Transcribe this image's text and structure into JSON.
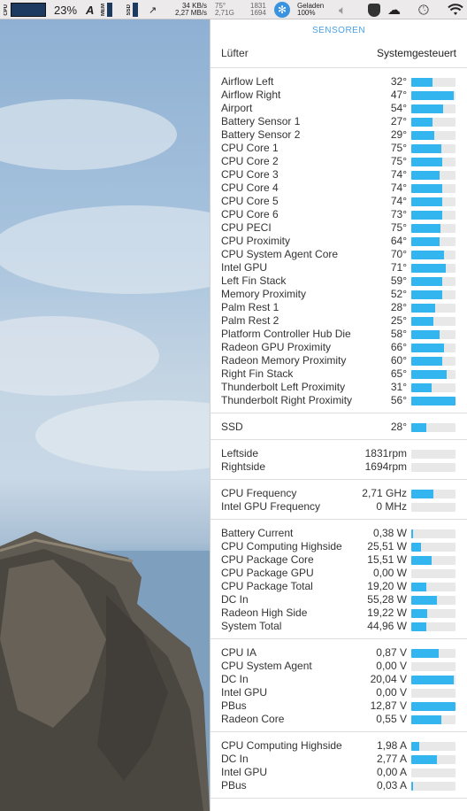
{
  "menubar": {
    "cpu_label": "CPU",
    "cpu_percent": "23%",
    "mem_label": "MEM",
    "ssd_label": "SSD",
    "net_up": "34 KB/s",
    "net_down": "2,27 MB/s",
    "stat1_top": "75°",
    "stat1_bottom": "2,71G",
    "stat2_top": "1831",
    "stat2_bottom": "1694",
    "battery_top": "Geladen",
    "battery_bottom": "100%"
  },
  "panel": {
    "title": "SENSOREN",
    "fan_label": "Lüfter",
    "fan_mode": "Systemgesteuert",
    "temperatures": [
      {
        "label": "Airflow Left",
        "value": "32°",
        "fill": 0.48
      },
      {
        "label": "Airflow Right",
        "value": "47°",
        "fill": 0.96
      },
      {
        "label": "Airport",
        "value": "54°",
        "fill": 0.72
      },
      {
        "label": "Battery Sensor 1",
        "value": "27°",
        "fill": 0.48
      },
      {
        "label": "Battery Sensor 2",
        "value": "29°",
        "fill": 0.52
      },
      {
        "label": "CPU Core 1",
        "value": "75°",
        "fill": 0.68
      },
      {
        "label": "CPU Core 2",
        "value": "75°",
        "fill": 0.7
      },
      {
        "label": "CPU Core 3",
        "value": "74°",
        "fill": 0.64
      },
      {
        "label": "CPU Core 4",
        "value": "74°",
        "fill": 0.7
      },
      {
        "label": "CPU Core 5",
        "value": "74°",
        "fill": 0.7
      },
      {
        "label": "CPU Core 6",
        "value": "73°",
        "fill": 0.7
      },
      {
        "label": "CPU PECI",
        "value": "75°",
        "fill": 0.66
      },
      {
        "label": "CPU Proximity",
        "value": "64°",
        "fill": 0.64
      },
      {
        "label": "CPU System Agent Core",
        "value": "70°",
        "fill": 0.74
      },
      {
        "label": "Intel GPU",
        "value": "71°",
        "fill": 0.78
      },
      {
        "label": "Left Fin Stack",
        "value": "59°",
        "fill": 0.7
      },
      {
        "label": "Memory Proximity",
        "value": "52°",
        "fill": 0.7
      },
      {
        "label": "Palm Rest 1",
        "value": "28°",
        "fill": 0.54
      },
      {
        "label": "Palm Rest 2",
        "value": "25°",
        "fill": 0.5
      },
      {
        "label": "Platform Controller Hub Die",
        "value": "58°",
        "fill": 0.64
      },
      {
        "label": "Radeon GPU Proximity",
        "value": "66°",
        "fill": 0.74
      },
      {
        "label": "Radeon Memory Proximity",
        "value": "60°",
        "fill": 0.7
      },
      {
        "label": "Right Fin Stack",
        "value": "65°",
        "fill": 0.8
      },
      {
        "label": "Thunderbolt Left Proximity",
        "value": "31°",
        "fill": 0.46
      },
      {
        "label": "Thunderbolt Right Proximity",
        "value": "56°",
        "fill": 1.0
      }
    ],
    "ssd": [
      {
        "label": "SSD",
        "value": "28°",
        "fill": 0.34
      }
    ],
    "fans": [
      {
        "label": "Leftside",
        "value": "1831rpm",
        "fill": 0
      },
      {
        "label": "Rightside",
        "value": "1694rpm",
        "fill": 0
      }
    ],
    "frequencies": [
      {
        "label": "CPU Frequency",
        "value": "2,71 GHz",
        "fill": 0.5
      },
      {
        "label": "Intel GPU Frequency",
        "value": "0 MHz",
        "fill": 0
      }
    ],
    "power": [
      {
        "label": "Battery Current",
        "value": "0,38 W",
        "fill": 0.03
      },
      {
        "label": "CPU Computing Highside",
        "value": "25,51 W",
        "fill": 0.22
      },
      {
        "label": "CPU Package Core",
        "value": "15,51 W",
        "fill": 0.46
      },
      {
        "label": "CPU Package GPU",
        "value": "0,00 W",
        "fill": 0
      },
      {
        "label": "CPU Package Total",
        "value": "19,20 W",
        "fill": 0.34
      },
      {
        "label": "DC In",
        "value": "55,28 W",
        "fill": 0.58
      },
      {
        "label": "Radeon High Side",
        "value": "19,22 W",
        "fill": 0.36
      },
      {
        "label": "System Total",
        "value": "44,96 W",
        "fill": 0.34
      }
    ],
    "voltages": [
      {
        "label": "CPU IA",
        "value": "0,87 V",
        "fill": 0.62
      },
      {
        "label": "CPU System Agent",
        "value": "0,00 V",
        "fill": 0
      },
      {
        "label": "DC In",
        "value": "20,04 V",
        "fill": 0.96
      },
      {
        "label": "Intel GPU",
        "value": "0,00 V",
        "fill": 0
      },
      {
        "label": "PBus",
        "value": "12,87 V",
        "fill": 1.0
      },
      {
        "label": "Radeon Core",
        "value": "0,55 V",
        "fill": 0.68
      }
    ],
    "currents": [
      {
        "label": "CPU Computing Highside",
        "value": "1,98 A",
        "fill": 0.18
      },
      {
        "label": "DC In",
        "value": "2,77 A",
        "fill": 0.58
      },
      {
        "label": "Intel GPU",
        "value": "0,00 A",
        "fill": 0
      },
      {
        "label": "PBus",
        "value": "0,03 A",
        "fill": 0.03
      }
    ]
  },
  "colors": {
    "accent": "#4aa0e6",
    "bar_fill": "#33b5f0",
    "bar_bg": "#e8e8e8"
  }
}
